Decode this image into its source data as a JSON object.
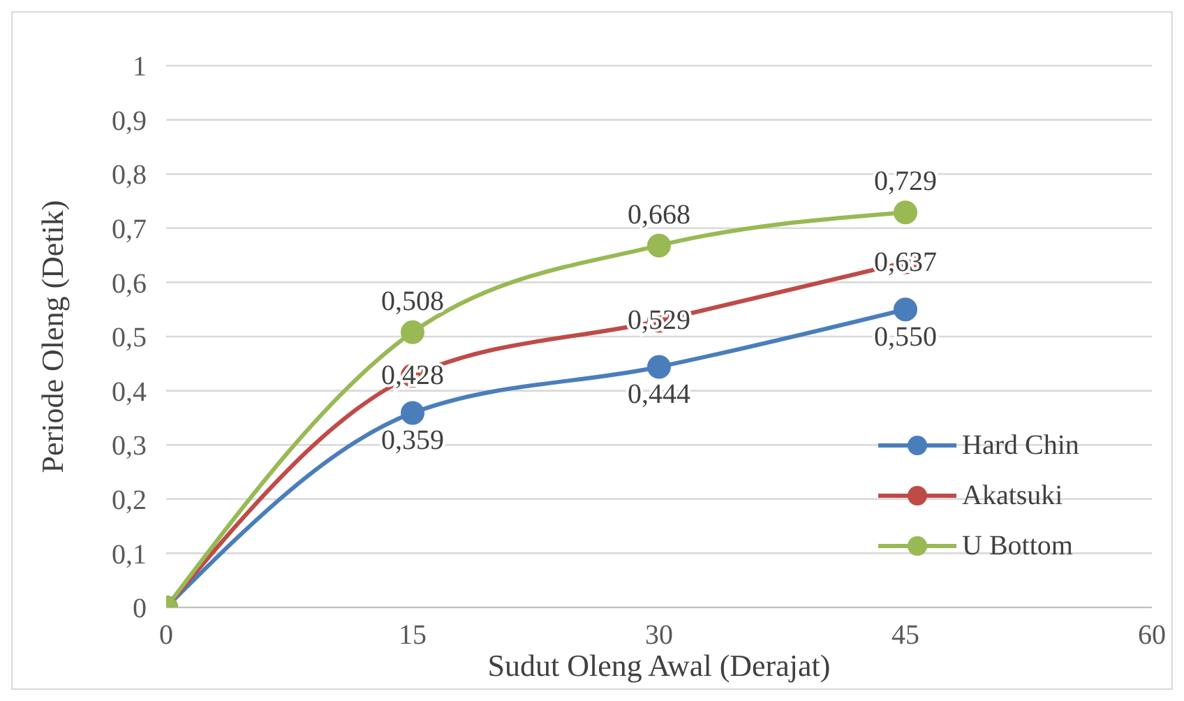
{
  "chart_data": {
    "type": "line",
    "xlabel": "Sudut Oleng Awal (Derajat)",
    "ylabel": "Periode Oleng (Detik)",
    "x": [
      0,
      15,
      30,
      45
    ],
    "series": [
      {
        "name": "Hard Chin",
        "color": "#4a7ebb",
        "values": [
          0,
          0.359,
          0.444,
          0.55
        ],
        "value_labels": [
          null,
          "0,359",
          "0,444",
          "0,550"
        ]
      },
      {
        "name": "Akatsuki",
        "color": "#be4b48",
        "values": [
          0,
          0.428,
          0.529,
          0.637
        ],
        "value_labels": [
          null,
          "0,428",
          "0,529",
          "0,637"
        ]
      },
      {
        "name": "U Bottom",
        "color": "#98b954",
        "values": [
          0,
          0.508,
          0.668,
          0.729
        ],
        "value_labels": [
          null,
          "0,508",
          "0,668",
          "0,729"
        ]
      }
    ],
    "xlim": [
      0,
      60
    ],
    "xticks": [
      0,
      15,
      30,
      45,
      60
    ],
    "ylim": [
      0,
      1
    ],
    "yticks": [
      0,
      {
        "value": 0.1,
        "label": "0,1"
      },
      {
        "value": 0.2,
        "label": "0,2"
      },
      {
        "value": 0.3,
        "label": "0,3"
      },
      {
        "value": 0.4,
        "label": "0,4"
      },
      {
        "value": 0.5,
        "label": "0,5"
      },
      {
        "value": 0.6,
        "label": "0,6"
      },
      {
        "value": 0.7,
        "label": "0,7"
      },
      {
        "value": 0.8,
        "label": "0,8"
      },
      {
        "value": 0.9,
        "label": "0,9"
      },
      1
    ],
    "grid": "y",
    "legend": "right",
    "marker": "circle",
    "line_style": "solid"
  }
}
